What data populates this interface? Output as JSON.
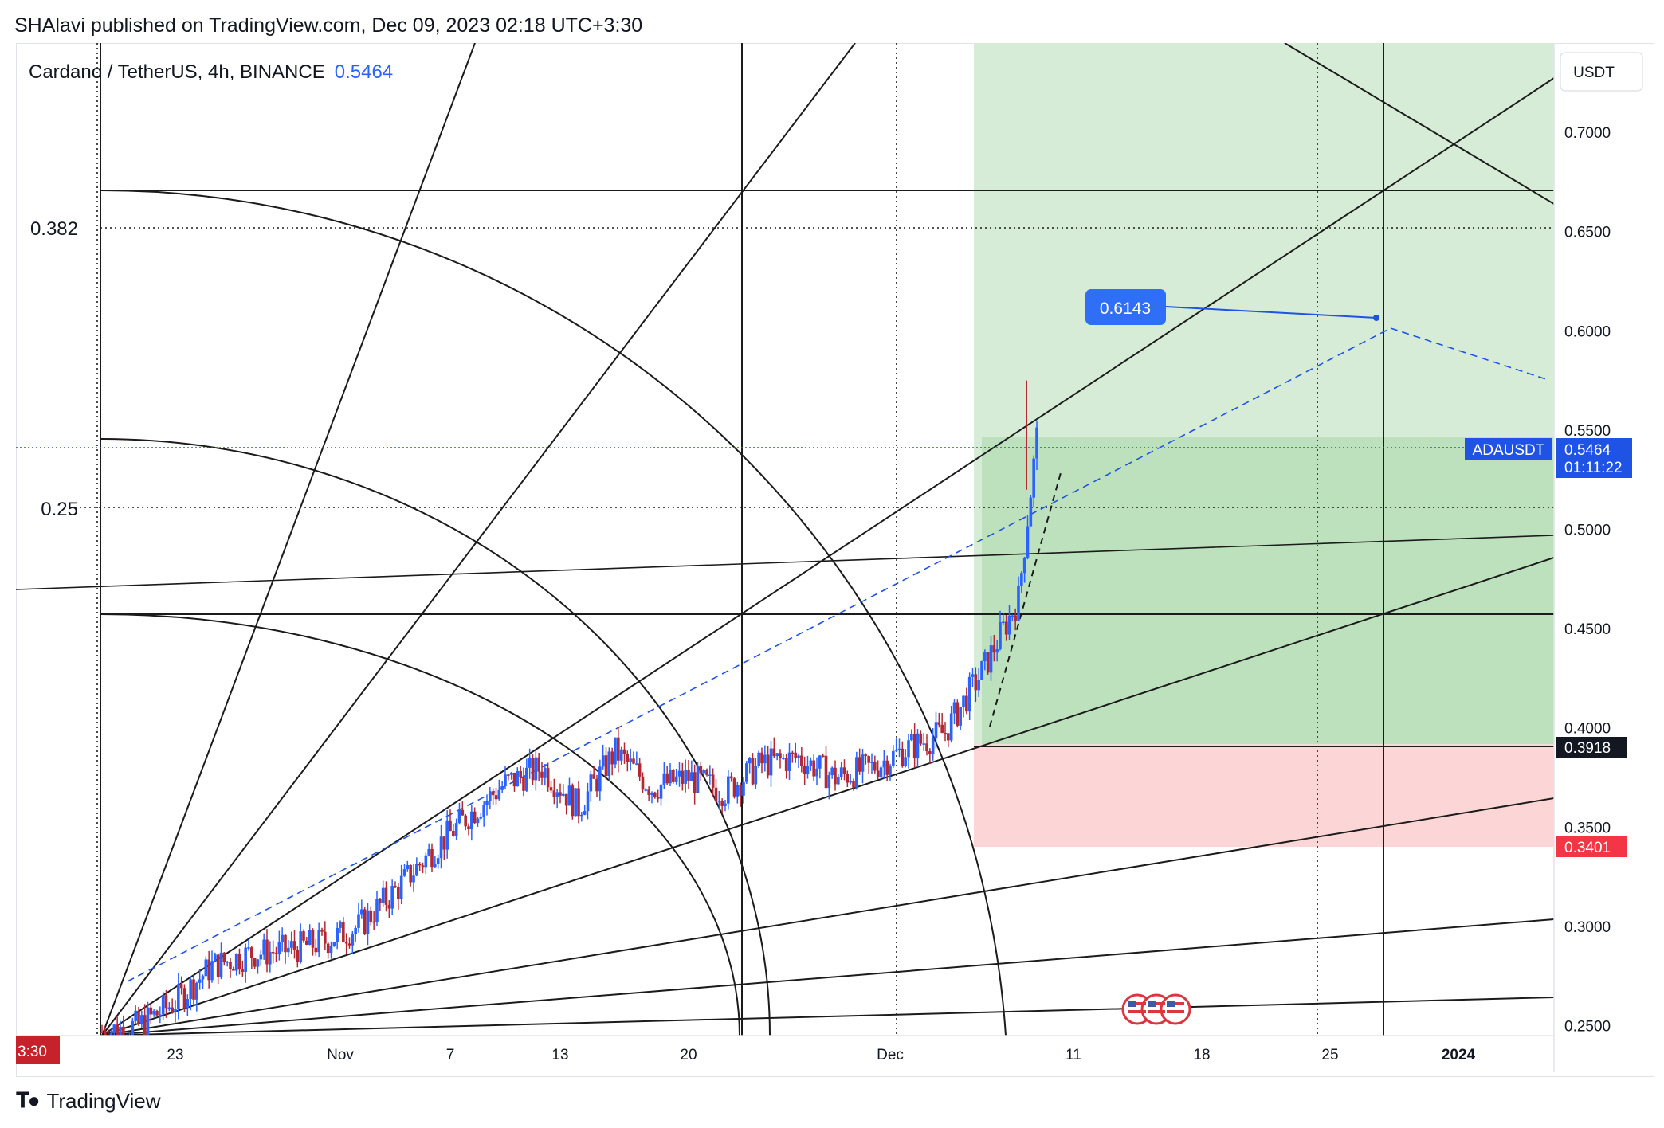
{
  "header": {
    "published": "SHAlavi published on TradingView.com, Dec 09, 2023 02:18 UTC+3:30"
  },
  "symbol_line": {
    "name": "Cardano / TetherUS, 4h, BINANCE",
    "price": "0.5464"
  },
  "price_axis": {
    "currency": "USDT"
  },
  "fib_labels": [
    {
      "text": "0.382",
      "value": 0.382
    },
    {
      "text": "0.25",
      "value": 0.25
    }
  ],
  "target_label": "0.6143",
  "price_tags": {
    "symbol": "ADAUSDT",
    "last": "0.5464",
    "countdown": "01:11:22",
    "entry": "0.3918",
    "stop": "0.3401",
    "hidden_partial": "0.5500"
  },
  "time_axis": {
    "left_stub": "3:30"
  },
  "footer": {
    "brand": "TradingView"
  },
  "colors": {
    "up": "#2962ff",
    "down": "#b22833",
    "blue_line": "#1e53e5",
    "profit_zone": "#d6ecd6",
    "profit_zone_strong": "#b9e0b9",
    "loss_zone": "#fbd5d5"
  },
  "chart_data": {
    "type": "line",
    "title": "Cardano / TetherUS, 4h, BINANCE",
    "series": [
      {
        "name": "ADAUSDT",
        "x": [
          "2023-10-19",
          "2023-10-21",
          "2023-10-23",
          "2023-10-25",
          "2023-10-27",
          "2023-10-29",
          "2023-10-31",
          "2023-11-02",
          "2023-11-04",
          "2023-11-06",
          "2023-11-08",
          "2023-11-10",
          "2023-11-12",
          "2023-11-14",
          "2023-11-16",
          "2023-11-18",
          "2023-11-20",
          "2023-11-22",
          "2023-11-24",
          "2023-11-26",
          "2023-11-28",
          "2023-11-30",
          "2023-12-02",
          "2023-12-04",
          "2023-12-06",
          "2023-12-08",
          "2023-12-09"
        ],
        "values": [
          0.247,
          0.25,
          0.262,
          0.28,
          0.286,
          0.288,
          0.292,
          0.3,
          0.318,
          0.338,
          0.356,
          0.372,
          0.38,
          0.36,
          0.388,
          0.37,
          0.375,
          0.368,
          0.382,
          0.385,
          0.375,
          0.38,
          0.39,
          0.398,
          0.428,
          0.465,
          0.5464
        ]
      }
    ],
    "xlabel": "",
    "ylabel": "",
    "x_ticks": [
      "23",
      "Nov",
      "7",
      "13",
      "20",
      "Dec",
      "11",
      "18",
      "25",
      "2024"
    ],
    "y_ticks": [
      "0.2500",
      "0.3000",
      "0.3500",
      "0.4000",
      "0.4500",
      "0.5000",
      "0.5500",
      "0.6000",
      "0.6500",
      "0.7000"
    ],
    "ylim": [
      0.245,
      0.745
    ],
    "annotations": {
      "last_price": 0.5464,
      "entry": 0.3918,
      "stop": 0.3401,
      "target": 0.6143,
      "fib_levels": [
        0.382,
        0.25
      ]
    },
    "grid": false,
    "legend": "none"
  }
}
